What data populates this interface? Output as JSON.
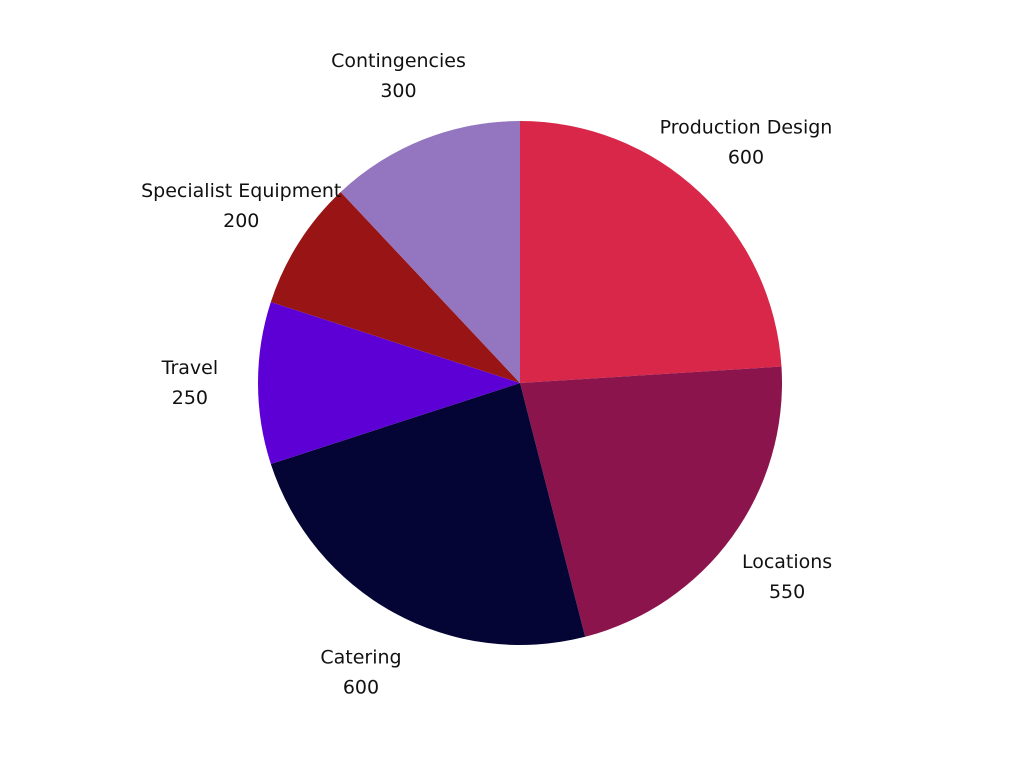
{
  "chart_data": {
    "type": "pie",
    "title": "",
    "start_angle_deg": 0,
    "direction": "clockwise",
    "legend": "none",
    "slices": [
      {
        "name": "Production Design",
        "value": 600,
        "color": "#d82748"
      },
      {
        "name": "Locations",
        "value": 550,
        "color": "#8b144d"
      },
      {
        "name": "Catering",
        "value": 600,
        "color": "#050535"
      },
      {
        "name": "Travel",
        "value": 250,
        "color": "#5c00d6"
      },
      {
        "name": "Specialist Equipment",
        "value": 200,
        "color": "#991515"
      },
      {
        "name": "Contingencies",
        "value": 300,
        "color": "#9475bf"
      }
    ]
  }
}
